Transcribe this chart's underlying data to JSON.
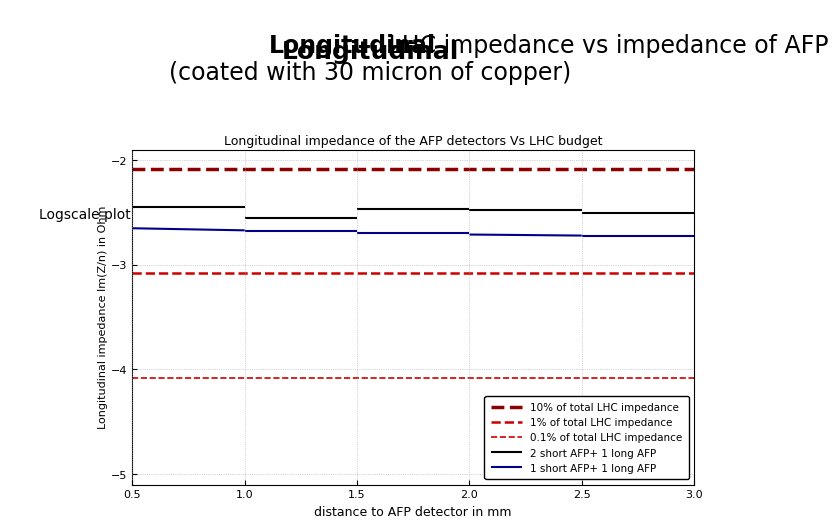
{
  "title_bold": "Longitudinal",
  "title_rest": " LHC impedance vs impedance of AFP\n(coated with 30 micron of copper)",
  "subtitle": "Longitudinal impedance of the AFP detectors Vs LHC budget",
  "xlabel": "distance to AFP detector in mm",
  "ylabel": "Longitudinal impedance Im(Z/n) in Ohm",
  "label_logscale": "Logscale plot",
  "xlim": [
    0.5,
    3.0
  ],
  "ylim": [
    -5.1,
    -1.9
  ],
  "yticks": [
    -5,
    -4,
    -3,
    -2
  ],
  "xticks": [
    0.5,
    1.0,
    1.5,
    2.0,
    2.5,
    3.0
  ],
  "line1_label": "2 short AFP+ 1 long AFP",
  "line2_label": "1 short AFP+ 1 long AFP",
  "line3_label": "10% of total LHC impedance",
  "line4_label": "1% of total LHC impedance",
  "line5_label": "0.1% of total LHC impedance",
  "lhc_10pct": -2.08,
  "lhc_1pct": -3.08,
  "lhc_01pct": -4.08,
  "black_line_segments": [
    [
      [
        0.5,
        -2.45
      ],
      [
        1.0,
        -2.45
      ]
    ],
    [
      [
        1.0,
        -2.55
      ],
      [
        1.5,
        -2.55
      ]
    ],
    [
      [
        1.5,
        -2.47
      ],
      [
        2.0,
        -2.47
      ]
    ],
    [
      [
        2.0,
        -2.48
      ],
      [
        2.5,
        -2.48
      ]
    ],
    [
      [
        2.5,
        -2.5
      ],
      [
        3.0,
        -2.5
      ]
    ]
  ],
  "blue_line_segments": [
    [
      [
        0.5,
        -2.65
      ],
      [
        1.0,
        -2.67
      ]
    ],
    [
      [
        1.0,
        -2.68
      ],
      [
        1.5,
        -2.68
      ]
    ],
    [
      [
        1.5,
        -2.7
      ],
      [
        2.0,
        -2.7
      ]
    ],
    [
      [
        2.0,
        -2.71
      ],
      [
        2.5,
        -2.72
      ]
    ],
    [
      [
        2.5,
        -2.72
      ],
      [
        3.0,
        -2.72
      ]
    ]
  ],
  "black_color": "#000000",
  "blue_color": "#00008B",
  "red_dark_color": "#8B0000",
  "red_light_color": "#CC0000",
  "bg_color": "#ffffff",
  "grid_color": "#aaaaaa"
}
